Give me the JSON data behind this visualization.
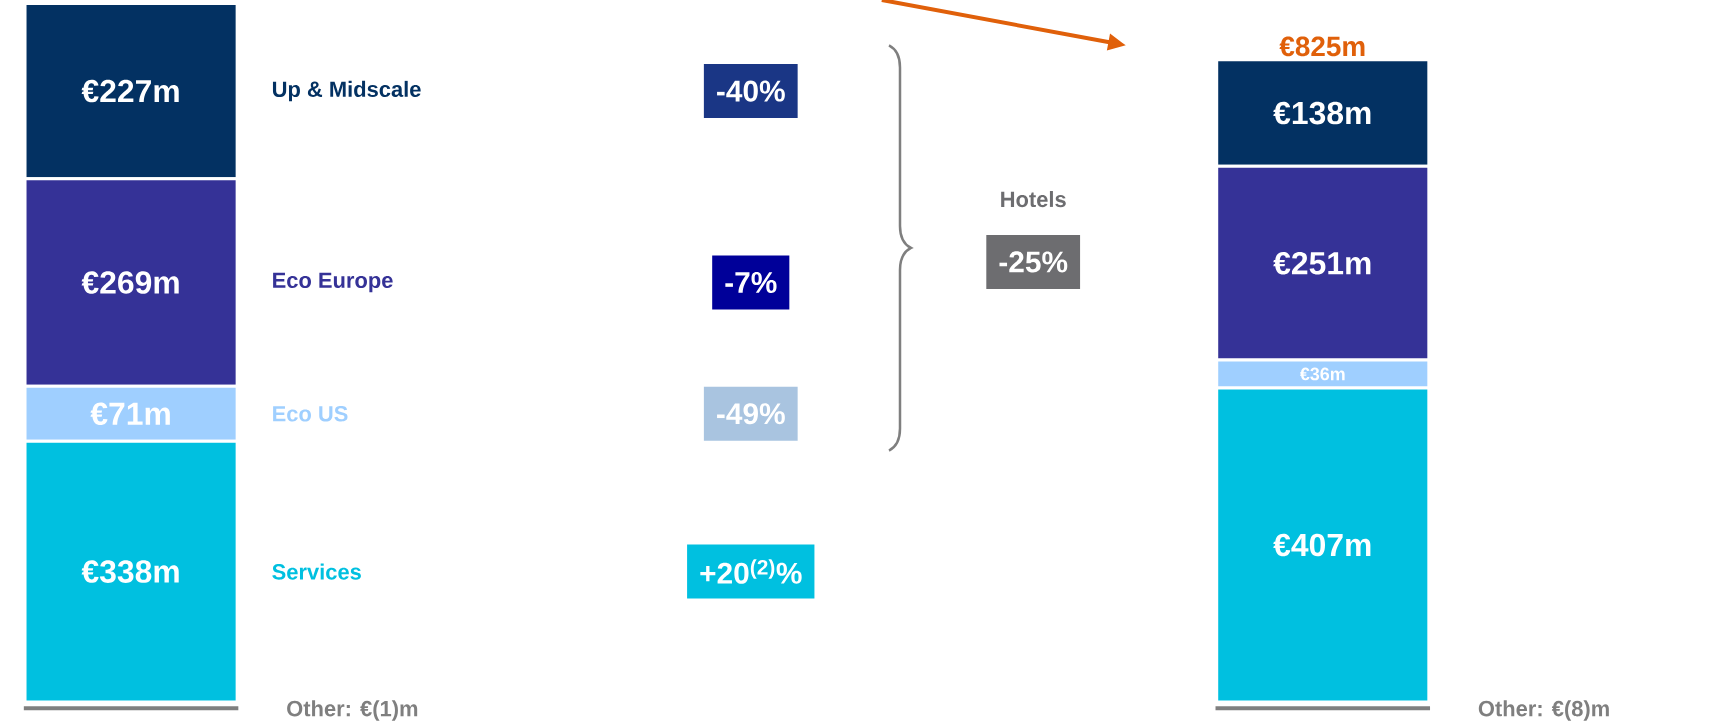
{
  "chart_data": {
    "type": "bar",
    "stacked": true,
    "categories": [
      null,
      null
    ],
    "series": [
      {
        "name": "Services",
        "color": "#00c0e0",
        "values": [
          338,
          407
        ],
        "value_labels": [
          "€338m",
          "€407m"
        ]
      },
      {
        "name": "Eco US",
        "color": "#9fcfff",
        "values": [
          71,
          36
        ],
        "value_labels": [
          "€71m",
          "€36m"
        ]
      },
      {
        "name": "Eco Europe",
        "color": "#353297",
        "values": [
          269,
          251
        ],
        "value_labels": [
          "€269m",
          "€251m"
        ]
      },
      {
        "name": "Up & Midscale",
        "color": "#033162",
        "values": [
          227,
          138
        ],
        "value_labels": [
          "€227m",
          "€138m"
        ]
      }
    ],
    "annotations": [
      "-40%",
      "-7%",
      "-49%",
      "+20$^{(2)}$%",
      "Hotels",
      "-25%",
      "Other: €(1)m",
      "Other: €(8)m",
      "€825m"
    ],
    "legend": false
  }
}
